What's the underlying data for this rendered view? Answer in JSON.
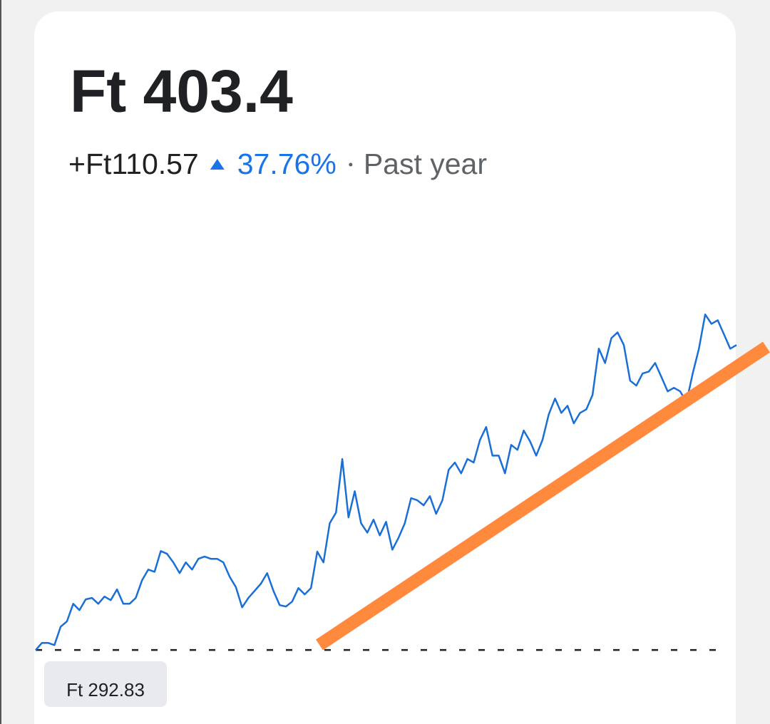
{
  "header": {
    "price": "Ft 403.4",
    "change": "+Ft110.57",
    "percent": "37.76%",
    "period": "Past year"
  },
  "chart_data": {
    "type": "line",
    "baseline": {
      "value": 292.83,
      "label": "Ft 292.83"
    },
    "ylim": [
      266,
      451
    ],
    "series": [
      {
        "color": "#1a6fd6",
        "values": [
          292.8,
          295.4,
          295.4,
          294.6,
          301.3,
          303.2,
          309.6,
          307.3,
          311.2,
          311.7,
          309.6,
          312.2,
          310.9,
          314.8,
          309.6,
          309.6,
          311.7,
          318.1,
          322.0,
          321.2,
          328.7,
          327.7,
          324.6,
          320.7,
          324.6,
          322.0,
          325.9,
          326.7,
          325.9,
          325.9,
          324.6,
          319.4,
          315.6,
          308.3,
          311.7,
          314.3,
          316.9,
          320.7,
          314.3,
          309.1,
          308.6,
          310.4,
          315.3,
          313.0,
          315.3,
          328.5,
          324.6,
          338.8,
          342.7,
          362.1,
          340.9,
          350.4,
          338.8,
          335.4,
          340.1,
          334.4,
          339.3,
          329.2,
          333.6,
          338.8,
          347.9,
          347.1,
          345.3,
          348.6,
          342.2,
          347.1,
          358.2,
          360.8,
          356.9,
          362.1,
          360.8,
          369.0,
          373.7,
          363.3,
          363.3,
          356.9,
          367.2,
          365.4,
          372.4,
          368.5,
          363.3,
          369.0,
          378.3,
          384.0,
          378.8,
          381.4,
          375.0,
          378.8,
          380.1,
          385.3,
          402.1,
          396.9,
          405.9,
          408.0,
          403.4,
          390.5,
          388.7,
          393.1,
          393.8,
          396.9,
          391.8,
          386.6,
          387.9,
          386.6,
          382.7,
          393.1,
          402.1,
          414.5,
          411.1,
          412.4,
          407.3,
          402.1,
          403.4
        ]
      }
    ]
  }
}
